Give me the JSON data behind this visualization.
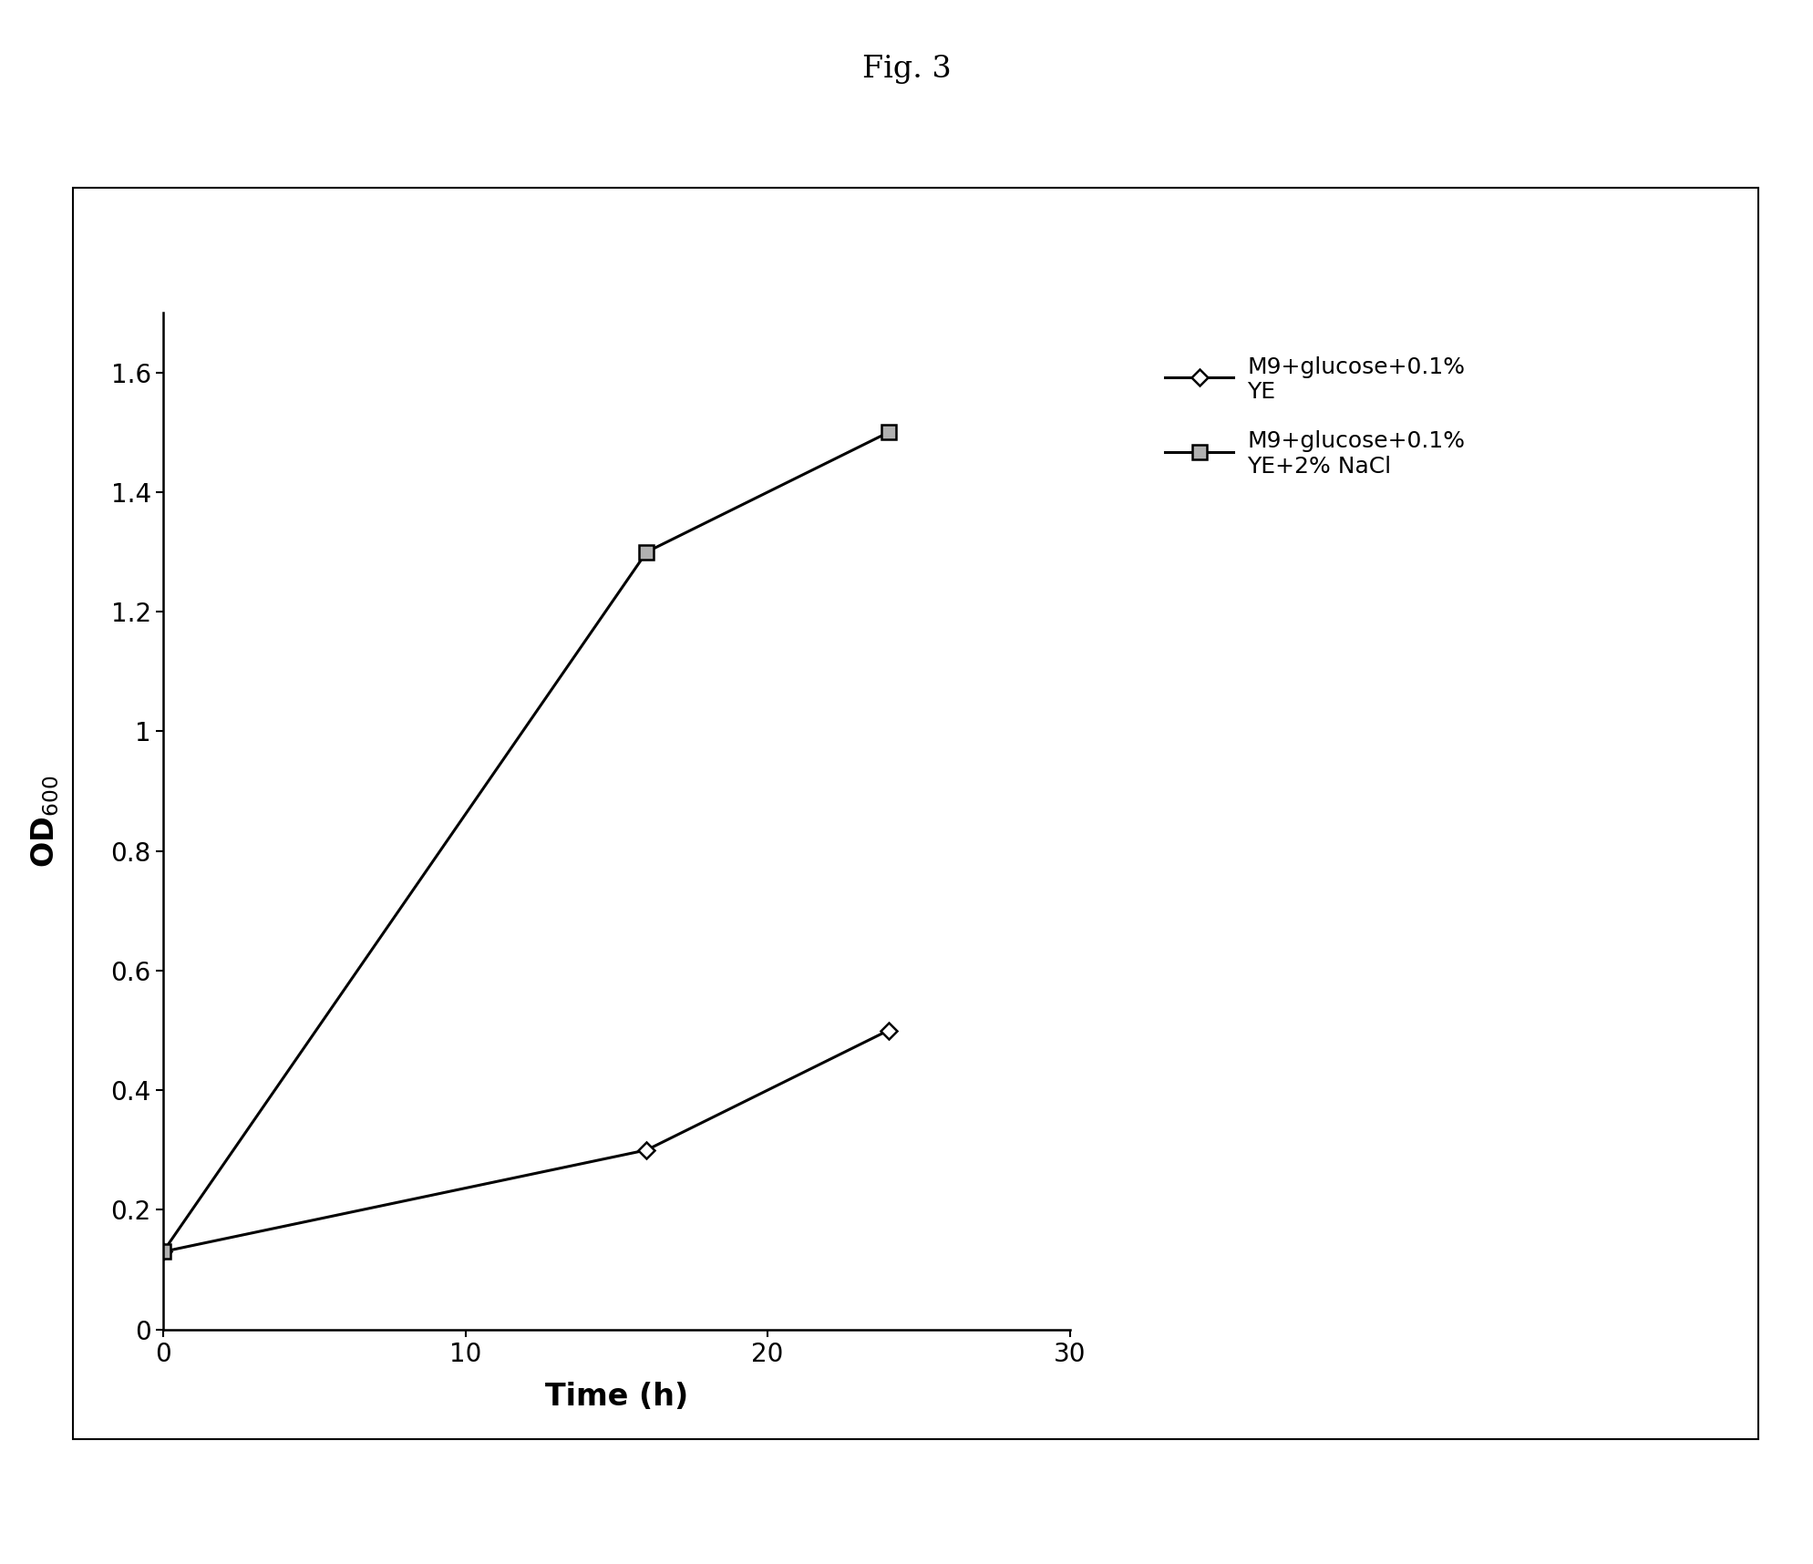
{
  "title": "Fig. 3",
  "series1": {
    "x": [
      0,
      16,
      24
    ],
    "y": [
      0.13,
      0.3,
      0.5
    ],
    "label": "M9+glucose+0.1%\nYE",
    "color": "#000000",
    "marker": "D",
    "markersize": 9,
    "linewidth": 2.2
  },
  "series2": {
    "x": [
      0,
      16,
      24
    ],
    "y": [
      0.13,
      1.3,
      1.5
    ],
    "label": "M9+glucose+0.1%\nYE+2% NaCl",
    "color": "#000000",
    "marker": "s",
    "markersize": 11,
    "markerfacecolor": "#b0b0b0",
    "linewidth": 2.2
  },
  "xlabel": "Time (h)",
  "xlim": [
    0,
    30
  ],
  "ylim": [
    0,
    1.7
  ],
  "xticks": [
    0,
    10,
    20,
    30
  ],
  "yticks": [
    0,
    0.2,
    0.4,
    0.6,
    0.8,
    1.0,
    1.2,
    1.4,
    1.6
  ],
  "background_color": "#ffffff",
  "figure_background": "#ffffff",
  "tick_fontsize": 20,
  "label_fontsize": 24,
  "legend_fontsize": 18,
  "title_fontsize": 24
}
